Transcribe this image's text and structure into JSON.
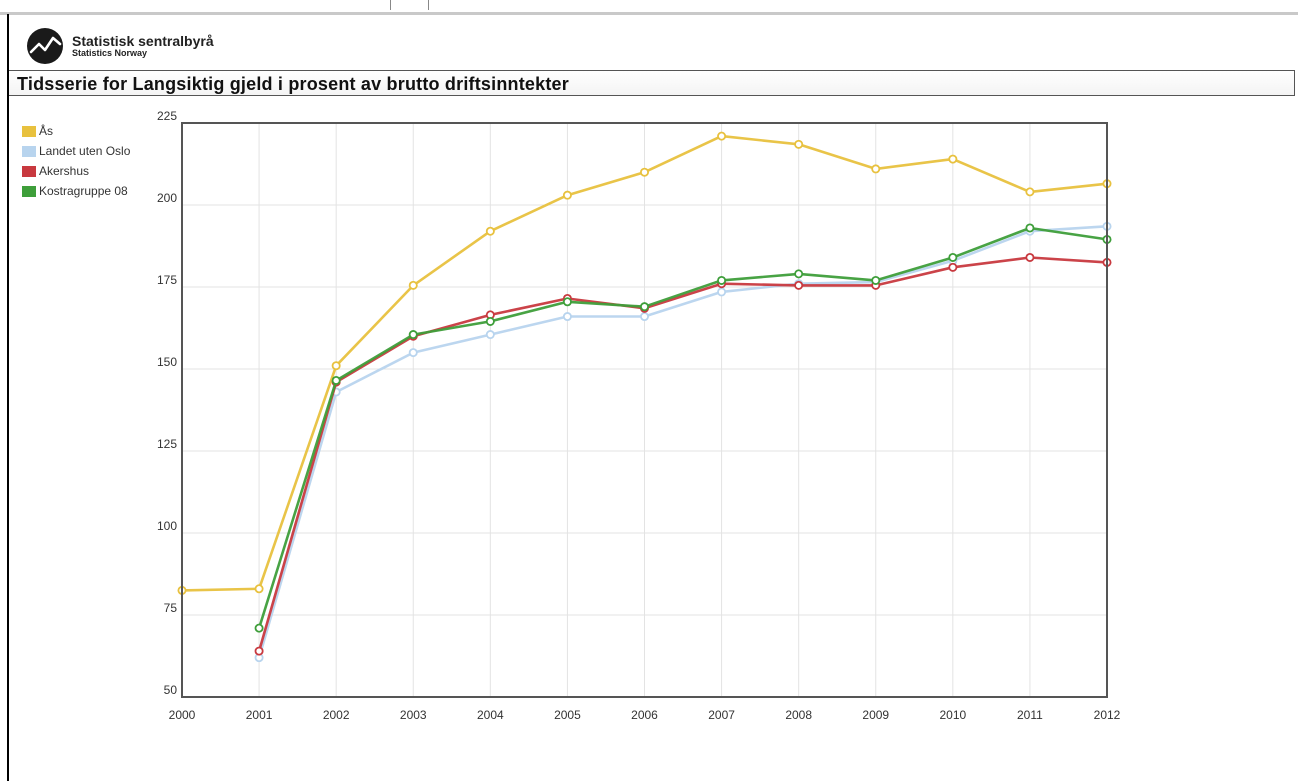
{
  "header": {
    "logo_name": "Statistisk sentralbyrå",
    "logo_sub": "Statistics Norway",
    "logo_icon": "ssb-wave-logo"
  },
  "title": "Tidsserie for Langsiktig gjeld i prosent av brutto driftsinntekter",
  "chart_data": {
    "type": "line",
    "title": "Tidsserie for Langsiktig gjeld i prosent av brutto driftsinntekter",
    "xlabel": "",
    "ylabel": "",
    "x": [
      "2000",
      "2001",
      "2002",
      "2003",
      "2004",
      "2005",
      "2006",
      "2007",
      "2008",
      "2009",
      "2010",
      "2011",
      "2012"
    ],
    "ylim": [
      50,
      225
    ],
    "yticks": [
      50,
      75,
      100,
      125,
      150,
      175,
      200,
      225
    ],
    "grid": true,
    "legend_position": "top-left",
    "series": [
      {
        "name": "Ås",
        "color": "#e8c13e",
        "values": [
          82.5,
          83,
          151,
          175.5,
          192,
          203,
          210,
          221,
          218.5,
          211,
          214,
          204,
          206.5
        ]
      },
      {
        "name": "Landet uten Oslo",
        "color": "#b8d4ee",
        "values": [
          null,
          62,
          143,
          155,
          160.5,
          166,
          166,
          173.5,
          176,
          176.5,
          183,
          192,
          193.5
        ]
      },
      {
        "name": "Akershus",
        "color": "#c8393f",
        "values": [
          null,
          64,
          146,
          160,
          166.5,
          171.5,
          168.5,
          176,
          175.5,
          175.5,
          181,
          184,
          182.5
        ]
      },
      {
        "name": "Kostragruppe 08",
        "color": "#3e9e3a",
        "values": [
          null,
          71,
          146.5,
          160.5,
          164.5,
          170.5,
          169,
          177,
          179,
          177,
          184,
          193,
          189.5
        ]
      }
    ]
  }
}
